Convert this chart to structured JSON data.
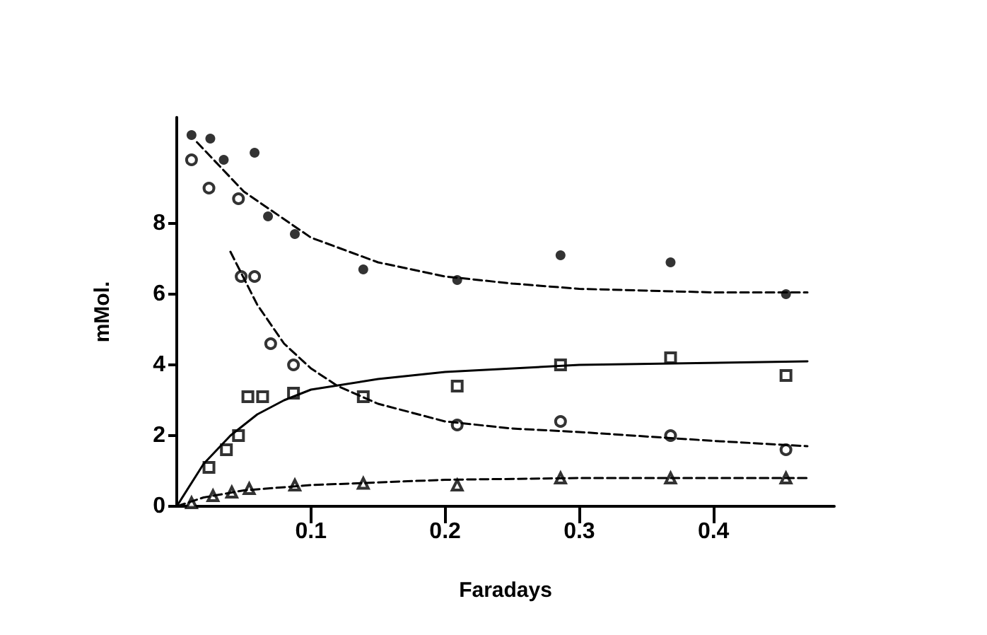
{
  "chart_data": {
    "type": "scatter",
    "xlabel": "Faradays",
    "ylabel": "mMol.",
    "xlim": [
      0,
      0.49
    ],
    "ylim": [
      0,
      11
    ],
    "xticks": [
      0.1,
      0.2,
      0.3,
      0.4
    ],
    "yticks": [
      0,
      2,
      4,
      6,
      8
    ],
    "series": [
      {
        "marker": "circle",
        "color": "#000000",
        "x": [
          0.011,
          0.025,
          0.035,
          0.058,
          0.068,
          0.088,
          0.139,
          0.209,
          0.286,
          0.368,
          0.454
        ],
        "values": [
          10.5,
          10.4,
          9.8,
          10.0,
          8.2,
          7.7,
          6.7,
          6.4,
          7.1,
          6.9,
          6.0
        ]
      },
      {
        "marker": "empty-circle",
        "color": "#000000",
        "x": [
          0.011,
          0.024,
          0.046,
          0.048,
          0.058,
          0.07,
          0.087,
          0.209,
          0.286,
          0.368,
          0.454
        ],
        "values": [
          9.8,
          9.0,
          8.7,
          6.5,
          6.5,
          4.6,
          4.0,
          2.3,
          2.4,
          2.0,
          1.6
        ]
      },
      {
        "marker": "square",
        "color": "#000000",
        "x": [
          0.024,
          0.037,
          0.046,
          0.053,
          0.064,
          0.087,
          0.139,
          0.209,
          0.286,
          0.368,
          0.454
        ],
        "values": [
          1.1,
          1.6,
          2.0,
          3.1,
          3.1,
          3.2,
          3.1,
          3.4,
          4.0,
          4.2,
          3.7
        ]
      },
      {
        "marker": "triangle",
        "color": "#000000",
        "x": [
          0.011,
          0.027,
          0.041,
          0.054,
          0.088,
          0.139,
          0.209,
          0.286,
          0.368,
          0.454
        ],
        "values": [
          0.1,
          0.3,
          0.4,
          0.5,
          0.6,
          0.65,
          0.6,
          0.8,
          0.8,
          0.8
        ]
      },
      {
        "type": "line",
        "marker": "none",
        "line_style": "dashed",
        "color": "#000000",
        "x": [
          0.015,
          0.05,
          0.1,
          0.15,
          0.2,
          0.25,
          0.3,
          0.35,
          0.4,
          0.47
        ],
        "values": [
          10.3,
          8.9,
          7.6,
          6.9,
          6.5,
          6.3,
          6.15,
          6.1,
          6.05,
          6.05
        ]
      },
      {
        "type": "line",
        "marker": "none",
        "line_style": "dashed",
        "color": "#000000",
        "x": [
          0.04,
          0.06,
          0.08,
          0.1,
          0.12,
          0.15,
          0.2,
          0.25,
          0.3,
          0.4,
          0.47
        ],
        "values": [
          7.2,
          5.7,
          4.6,
          3.9,
          3.4,
          2.9,
          2.4,
          2.2,
          2.1,
          1.85,
          1.7
        ]
      },
      {
        "type": "line",
        "marker": "none",
        "line_style": "solid",
        "color": "#000000",
        "x": [
          0,
          0.02,
          0.04,
          0.06,
          0.08,
          0.1,
          0.15,
          0.2,
          0.3,
          0.47
        ],
        "values": [
          0,
          1.2,
          2.0,
          2.6,
          3.0,
          3.3,
          3.6,
          3.8,
          4.0,
          4.1
        ]
      },
      {
        "type": "line",
        "marker": "none",
        "line_style": "dashed",
        "color": "#000000",
        "x": [
          0,
          0.02,
          0.05,
          0.1,
          0.2,
          0.3,
          0.47
        ],
        "values": [
          0,
          0.25,
          0.45,
          0.6,
          0.75,
          0.8,
          0.8
        ]
      }
    ]
  }
}
